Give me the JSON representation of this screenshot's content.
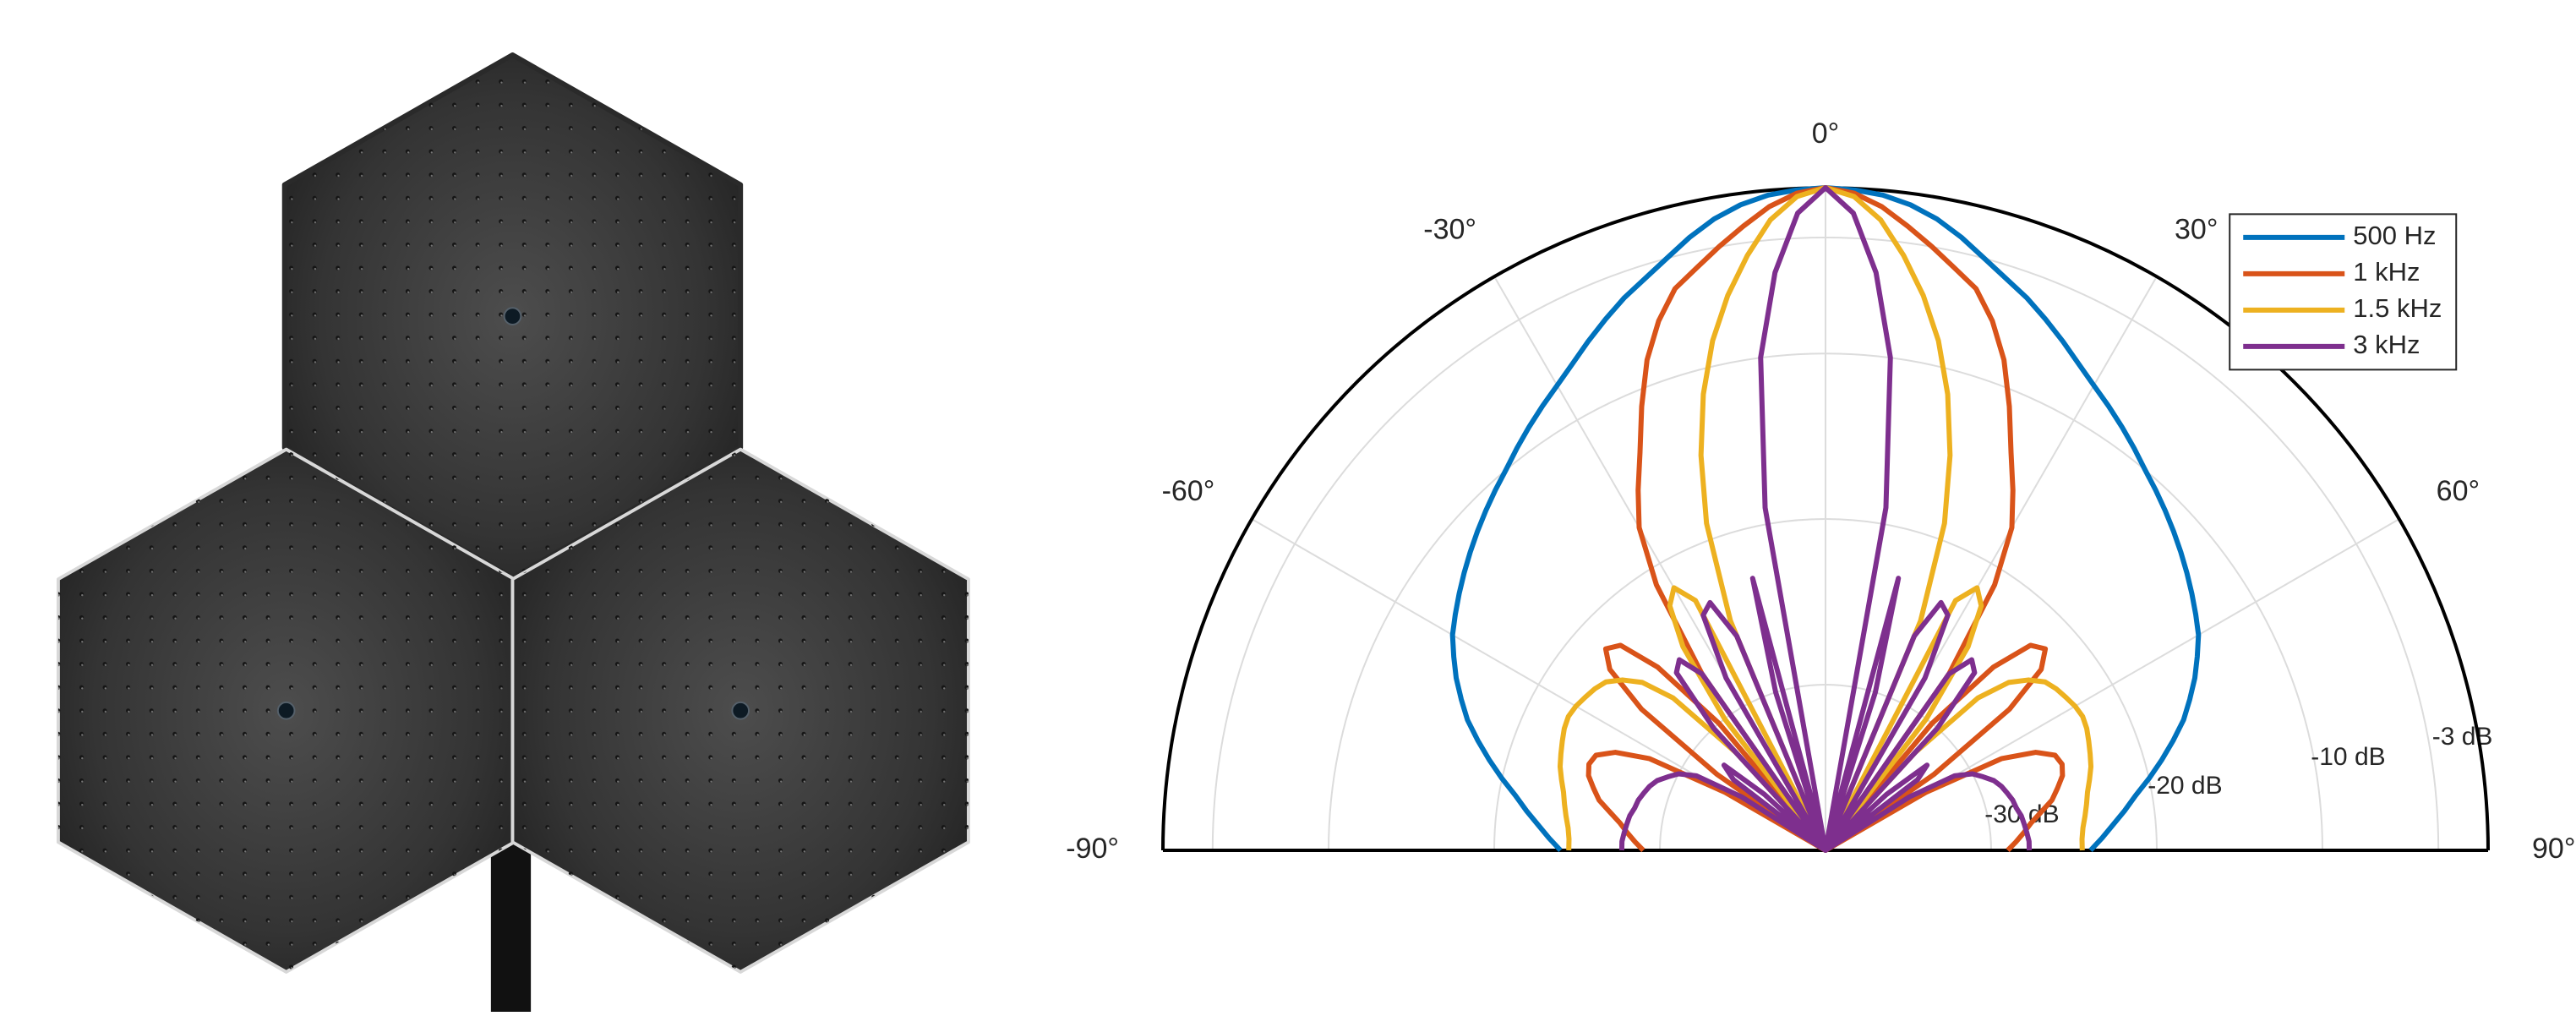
{
  "chart_data": {
    "type": "polar",
    "x": [
      -90,
      -87.5,
      -85,
      -82.5,
      -80,
      -77.5,
      -75,
      -72.5,
      -70,
      -67.5,
      -65,
      -62.5,
      -60,
      -57.5,
      -55,
      -52.5,
      -50,
      -47.5,
      -45,
      -42.5,
      -40,
      -37.5,
      -35,
      -32.5,
      -30,
      -27.5,
      -25,
      -22.5,
      -20,
      -17.5,
      -15,
      -12.5,
      -10,
      -7.5,
      -5,
      -2.5,
      0,
      2.5,
      5,
      7.5,
      10,
      12.5,
      15,
      17.5,
      20,
      22.5,
      25,
      27.5,
      30,
      32.5,
      35,
      37.5,
      40,
      42.5,
      45,
      47.5,
      50,
      52.5,
      55,
      57.5,
      60,
      62.5,
      65,
      67.5,
      70,
      72.5,
      75,
      77.5,
      80,
      82.5,
      85,
      87.5,
      90
    ],
    "series": [
      {
        "name": "500 Hz",
        "color": "#0072bd",
        "values": [
          -24,
          -23.3,
          -22.6,
          -21.8,
          -21,
          -20,
          -19,
          -18,
          -17,
          -16.2,
          -15.4,
          -14.7,
          -14,
          -13.5,
          -13,
          -12.5,
          -12,
          -11.5,
          -11,
          -10.5,
          -10,
          -9.4,
          -8.8,
          -8.2,
          -7.6,
          -6.9,
          -6.1,
          -5.3,
          -4.5,
          -3.8,
          -3,
          -2.1,
          -1.3,
          -0.7,
          -0.3,
          -0.1,
          0,
          -0.1,
          -0.3,
          -0.7,
          -1.3,
          -2.1,
          -3,
          -3.8,
          -4.5,
          -5.3,
          -6.1,
          -6.9,
          -7.6,
          -8.2,
          -8.8,
          -9.4,
          -10,
          -10.5,
          -11,
          -11.5,
          -12,
          -12.5,
          -13,
          -13.5,
          -14,
          -14.7,
          -15.4,
          -16.2,
          -17,
          -18,
          -19,
          -20,
          -21,
          -21.8,
          -22.6,
          -23.3,
          -24
        ]
      },
      {
        "name": "1 kHz",
        "color": "#d95319",
        "values": [
          -29,
          -28.5,
          -28,
          -27.5,
          -26.8,
          -26,
          -25.5,
          -25,
          -24.8,
          -25,
          -26,
          -28,
          -33,
          -40,
          -32,
          -26,
          -23,
          -22,
          -22.5,
          -25,
          -30,
          -40,
          -27,
          -21,
          -17.5,
          -15.5,
          -13.5,
          -11,
          -8.5,
          -6.5,
          -4.9,
          -4,
          -3,
          -2,
          -1,
          -0.3,
          0,
          -0.3,
          -1,
          -2,
          -3,
          -4,
          -4.9,
          -6.5,
          -8.5,
          -11,
          -13.5,
          -15.5,
          -17.5,
          -21,
          -27,
          -40,
          -30,
          -25,
          -22.5,
          -22,
          -23,
          -26,
          -32,
          -40,
          -33,
          -28,
          -26,
          -25,
          -24.8,
          -25,
          -25.5,
          -26,
          -26.8,
          -27.5,
          -28,
          -28.5,
          -29
        ]
      },
      {
        "name": "1.5 kHz",
        "color": "#edb120",
        "values": [
          -24.5,
          -24.5,
          -24.4,
          -24.2,
          -24,
          -23.8,
          -23.5,
          -23.2,
          -23,
          -22.8,
          -22.6,
          -22.5,
          -22.6,
          -22.8,
          -23,
          -23.3,
          -24,
          -25,
          -27,
          -32,
          -40,
          -30,
          -25,
          -22.5,
          -21.7,
          -23,
          -40,
          -25,
          -19,
          -15,
          -11.5,
          -8.5,
          -6,
          -3.8,
          -1.8,
          -0.5,
          0,
          -0.5,
          -1.8,
          -3.8,
          -6,
          -8.5,
          -11.5,
          -15,
          -19,
          -25,
          -40,
          -23,
          -21.7,
          -22.5,
          -25,
          -30,
          -40,
          -32,
          -27,
          -25,
          -24,
          -23.3,
          -23,
          -22.8,
          -22.6,
          -22.5,
          -22.6,
          -22.8,
          -23,
          -23.2,
          -23.5,
          -23.8,
          -24,
          -24.2,
          -24.4,
          -24.5,
          -24.5
        ]
      },
      {
        "name": "3 kHz",
        "color": "#7e2f8e",
        "values": [
          -27.7,
          -27.7,
          -27.8,
          -27.9,
          -28,
          -28.2,
          -28.3,
          -28.5,
          -28.7,
          -29,
          -29.5,
          -30,
          -31,
          -34,
          -40,
          -33,
          -32,
          -35,
          -40,
          -30,
          -26,
          -25.5,
          -27,
          -40,
          -28,
          -24,
          -23.5,
          -26,
          -40,
          -30,
          -23,
          -40,
          -19,
          -10,
          -5,
          -1.5,
          0,
          -1.5,
          -5,
          -10,
          -19,
          -40,
          -23,
          -30,
          -40,
          -26,
          -23.5,
          -24,
          -28,
          -40,
          -27,
          -25.5,
          -26,
          -30,
          -40,
          -35,
          -32,
          -33,
          -40,
          -34,
          -31,
          -30,
          -29.5,
          -29,
          -28.7,
          -28.5,
          -28.3,
          -28.2,
          -28,
          -27.9,
          -27.8,
          -27.7,
          -27.7
        ]
      }
    ],
    "thetalim": [
      -90,
      90
    ],
    "thetaticks": [
      {
        "value": -90,
        "label": "-90°"
      },
      {
        "value": -60,
        "label": "-60°"
      },
      {
        "value": -30,
        "label": "-30°"
      },
      {
        "value": 0,
        "label": "0°"
      },
      {
        "value": 30,
        "label": "30°"
      },
      {
        "value": 60,
        "label": "60°"
      },
      {
        "value": 90,
        "label": "90°"
      }
    ],
    "rlim": [
      -40,
      0
    ],
    "rticks": [
      {
        "value": -30,
        "label": "-30 dB"
      },
      {
        "value": -20,
        "label": "-20 dB"
      },
      {
        "value": -10,
        "label": "-10 dB"
      },
      {
        "value": -3,
        "label": "-3 dB"
      }
    ],
    "grid": true,
    "legend": "upper right"
  }
}
